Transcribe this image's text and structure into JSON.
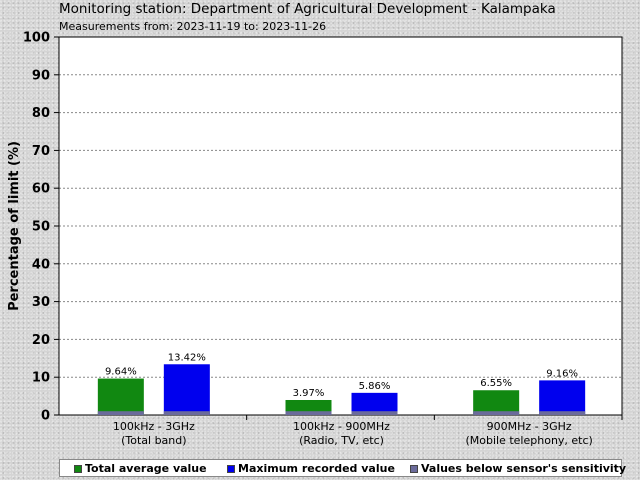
{
  "header": {
    "title": "Monitoring station: Department of Agricultural Development - Kalampaka",
    "subtitle": "Measurements from: 2023-11-19 to: 2023-11-26"
  },
  "colors": {
    "average": "#118811",
    "maximum": "#0000ee",
    "below_sensitivity": "#6b6b9b"
  },
  "legend": {
    "items": [
      {
        "label": "Total average value",
        "color": "#118811"
      },
      {
        "label": "Maximum recorded value",
        "color": "#0000ee"
      },
      {
        "label": "Values below sensor's sensitivity",
        "color": "#6b6b9b"
      }
    ]
  },
  "chart_data": {
    "type": "bar",
    "ylabel": "Percentage of limit (%)",
    "ylim": [
      0,
      100
    ],
    "yticks": [
      0,
      10,
      20,
      30,
      40,
      50,
      60,
      70,
      80,
      90,
      100
    ],
    "grid": true,
    "legend_position": "bottom",
    "categories": [
      {
        "line1": "100kHz - 3GHz",
        "line2": "(Total band)"
      },
      {
        "line1": "100kHz - 900MHz",
        "line2": "(Radio, TV, etc)"
      },
      {
        "line1": "900MHz - 3GHz",
        "line2": "(Mobile telephony, etc)"
      }
    ],
    "series": [
      {
        "name": "Total average value",
        "values": [
          9.64,
          3.97,
          6.55
        ],
        "labels": [
          "9.64%",
          "3.97%",
          "6.55%"
        ]
      },
      {
        "name": "Maximum recorded value",
        "values": [
          13.42,
          5.86,
          9.16
        ],
        "labels": [
          "13.42%",
          "5.86%",
          "9.16%"
        ]
      }
    ],
    "below_sensitivity": {
      "name": "Values below sensor's sensitivity",
      "value": 1
    }
  }
}
